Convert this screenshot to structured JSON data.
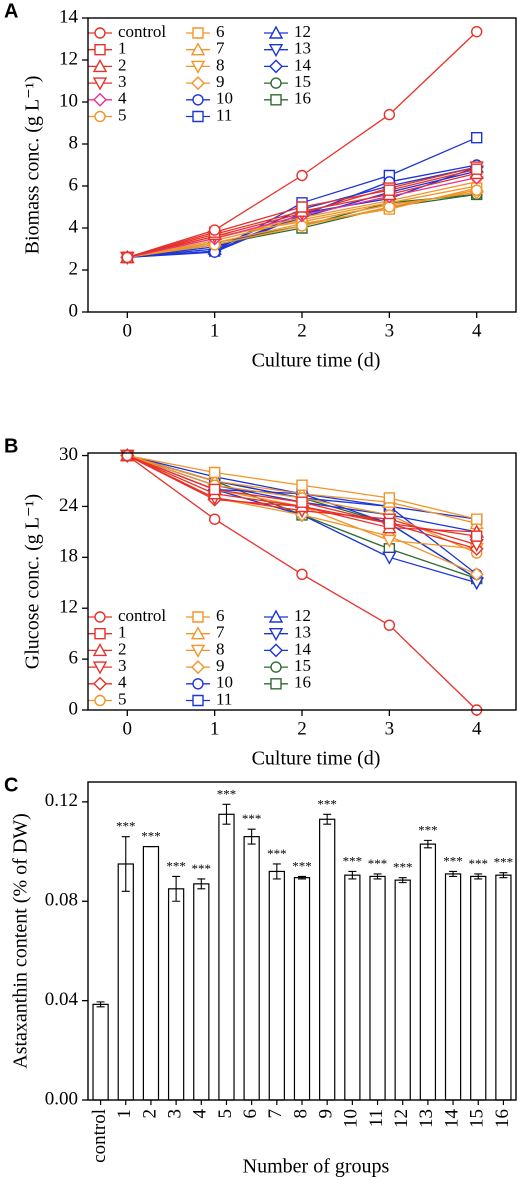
{
  "chart_data": [
    {
      "type": "line",
      "panel_label": "A",
      "y_label": "Biomass conc. (g L⁻¹)",
      "x_label": "Culture time (d)",
      "x": [
        0,
        1,
        2,
        3,
        4
      ],
      "xlim": [
        -0.45,
        4.45
      ],
      "xticks": [
        0,
        1,
        2,
        3,
        4
      ],
      "ylim": [
        0,
        14
      ],
      "yticks": [
        0,
        2,
        4,
        6,
        8,
        10,
        12,
        14
      ],
      "legend": "upper left",
      "series": [
        {
          "name": "control",
          "color": "#e8302a",
          "marker": "circle",
          "values": [
            2.6,
            3.9,
            6.5,
            9.4,
            13.35
          ]
        },
        {
          "name": "1",
          "color": "#e8302a",
          "marker": "square",
          "values": [
            2.6,
            3.8,
            5.0,
            5.8,
            6.8
          ]
        },
        {
          "name": "2",
          "color": "#e8302a",
          "marker": "triangle-up",
          "values": [
            2.6,
            3.7,
            4.8,
            5.6,
            6.6
          ]
        },
        {
          "name": "3",
          "color": "#e8302a",
          "marker": "triangle-down",
          "values": [
            2.6,
            3.6,
            4.7,
            5.9,
            6.9
          ]
        },
        {
          "name": "4",
          "color": "#e6338f",
          "marker": "diamond",
          "values": [
            2.6,
            3.5,
            4.6,
            5.5,
            6.4
          ]
        },
        {
          "name": "5",
          "color": "#f39426",
          "marker": "circle",
          "values": [
            2.6,
            3.2,
            4.1,
            5.0,
            5.8
          ]
        },
        {
          "name": "6",
          "color": "#f39426",
          "marker": "square",
          "values": [
            2.6,
            3.3,
            4.2,
            4.9,
            5.9
          ]
        },
        {
          "name": "7",
          "color": "#f39426",
          "marker": "triangle-up",
          "values": [
            2.6,
            3.4,
            4.4,
            5.2,
            6.0
          ]
        },
        {
          "name": "8",
          "color": "#f39426",
          "marker": "triangle-down",
          "values": [
            2.6,
            3.5,
            4.5,
            5.3,
            6.2
          ]
        },
        {
          "name": "9",
          "color": "#f39426",
          "marker": "diamond",
          "values": [
            2.6,
            3.6,
            4.3,
            5.1,
            5.7
          ]
        },
        {
          "name": "10",
          "color": "#1c35d8",
          "marker": "circle",
          "values": [
            2.6,
            2.85,
            4.6,
            6.2,
            7.0
          ]
        },
        {
          "name": "11",
          "color": "#1c35d8",
          "marker": "square",
          "values": [
            2.6,
            2.9,
            5.2,
            6.5,
            8.3
          ]
        },
        {
          "name": "12",
          "color": "#1c35d8",
          "marker": "triangle-up",
          "values": [
            2.6,
            3.0,
            4.9,
            6.0,
            6.9
          ]
        },
        {
          "name": "13",
          "color": "#1c35d8",
          "marker": "triangle-down",
          "values": [
            2.6,
            3.1,
            4.5,
            5.7,
            6.7
          ]
        },
        {
          "name": "14",
          "color": "#1c35d8",
          "marker": "diamond",
          "values": [
            2.6,
            2.9,
            4.7,
            5.4,
            6.9
          ]
        },
        {
          "name": "15",
          "color": "#2f6b2f",
          "marker": "circle",
          "values": [
            2.6,
            3.3,
            4.1,
            5.2,
            5.6
          ]
        },
        {
          "name": "16",
          "color": "#2f6b2f",
          "marker": "square",
          "values": [
            2.6,
            3.2,
            4.0,
            5.0,
            5.6
          ]
        }
      ]
    },
    {
      "type": "line",
      "panel_label": "B",
      "y_label": "Glucose conc. (g L⁻¹)",
      "x_label": "Culture time (d)",
      "x": [
        0,
        1,
        2,
        3,
        4
      ],
      "xlim": [
        -0.45,
        4.45
      ],
      "xticks": [
        0,
        1,
        2,
        3,
        4
      ],
      "ylim": [
        0,
        30.3
      ],
      "yticks": [
        0,
        6,
        12,
        18,
        24,
        30
      ],
      "legend": "lower left",
      "series": [
        {
          "name": "control",
          "color": "#e8302a",
          "marker": "circle",
          "values": [
            30,
            22.5,
            16,
            10,
            0
          ]
        },
        {
          "name": "1",
          "color": "#e8302a",
          "marker": "square",
          "values": [
            30,
            26,
            24.5,
            22,
            20.5
          ]
        },
        {
          "name": "2",
          "color": "#e8302a",
          "marker": "triangle-up",
          "values": [
            30,
            25.5,
            24,
            21.5,
            21
          ]
        },
        {
          "name": "3",
          "color": "#e8302a",
          "marker": "triangle-down",
          "values": [
            30,
            25,
            23.5,
            22.5,
            19.5
          ]
        },
        {
          "name": "4",
          "color": "#e8302a",
          "marker": "diamond",
          "values": [
            30,
            24.8,
            24,
            22,
            19
          ]
        },
        {
          "name": "5",
          "color": "#f39426",
          "marker": "circle",
          "values": [
            30,
            26.5,
            25,
            23,
            18.5
          ]
        },
        {
          "name": "6",
          "color": "#f39426",
          "marker": "square",
          "values": [
            30,
            28,
            26.5,
            25,
            22.5
          ]
        },
        {
          "name": "7",
          "color": "#f39426",
          "marker": "triangle-up",
          "values": [
            30,
            27,
            25.5,
            24.5,
            22
          ]
        },
        {
          "name": "8",
          "color": "#f39426",
          "marker": "triangle-down",
          "values": [
            30,
            26,
            24,
            20,
            19
          ]
        },
        {
          "name": "9",
          "color": "#f39426",
          "marker": "diamond",
          "values": [
            30,
            25,
            23,
            20.5,
            16
          ]
        },
        {
          "name": "10",
          "color": "#1c35d8",
          "marker": "circle",
          "values": [
            30,
            27,
            25,
            24,
            16
          ]
        },
        {
          "name": "11",
          "color": "#1c35d8",
          "marker": "square",
          "values": [
            30,
            27.5,
            25.5,
            24,
            22.5
          ]
        },
        {
          "name": "12",
          "color": "#1c35d8",
          "marker": "triangle-up",
          "values": [
            30,
            26.5,
            24.5,
            23,
            21
          ]
        },
        {
          "name": "13",
          "color": "#1c35d8",
          "marker": "triangle-down",
          "values": [
            30,
            26,
            23,
            18,
            15
          ]
        },
        {
          "name": "14",
          "color": "#1c35d8",
          "marker": "diamond",
          "values": [
            30,
            26,
            25.5,
            22,
            15.5
          ]
        },
        {
          "name": "15",
          "color": "#2f6b2f",
          "marker": "circle",
          "values": [
            30,
            27,
            25,
            22,
            15.5
          ]
        },
        {
          "name": "16",
          "color": "#2f6b2f",
          "marker": "square",
          "values": [
            30,
            27,
            23,
            19,
            15.5
          ]
        }
      ]
    },
    {
      "type": "bar",
      "panel_label": "C",
      "y_label": "Astaxanthin content (% of DW)",
      "x_label": "Number of groups",
      "categories": [
        "control",
        "1",
        "2",
        "3",
        "4",
        "5",
        "6",
        "7",
        "8",
        "9",
        "10",
        "11",
        "12",
        "13",
        "14",
        "15",
        "16"
      ],
      "values": [
        0.0385,
        0.095,
        0.102,
        0.085,
        0.087,
        0.115,
        0.106,
        0.092,
        0.0895,
        0.113,
        0.0905,
        0.09,
        0.0885,
        0.103,
        0.091,
        0.09,
        0.0905
      ],
      "errors": [
        0.001,
        0.011,
        0,
        0.005,
        0.002,
        0.004,
        0.003,
        0.003,
        0.0005,
        0.002,
        0.0015,
        0.001,
        0.001,
        0.0015,
        0.001,
        0.001,
        0.001
      ],
      "annotations": [
        null,
        "***",
        "***",
        "***",
        "***",
        "***",
        "***",
        "***",
        "***",
        "***",
        "***",
        "***",
        "***",
        "***",
        "***",
        "***",
        "***"
      ],
      "color": "#ffffff",
      "ylim": [
        0,
        0.128
      ],
      "yticks": [
        {
          "value": 0,
          "label": "0.00"
        },
        {
          "value": 0.04,
          "label": "0.04"
        },
        {
          "value": 0.08,
          "label": "0.08"
        },
        {
          "value": 0.12,
          "label": "0.12"
        }
      ]
    }
  ]
}
